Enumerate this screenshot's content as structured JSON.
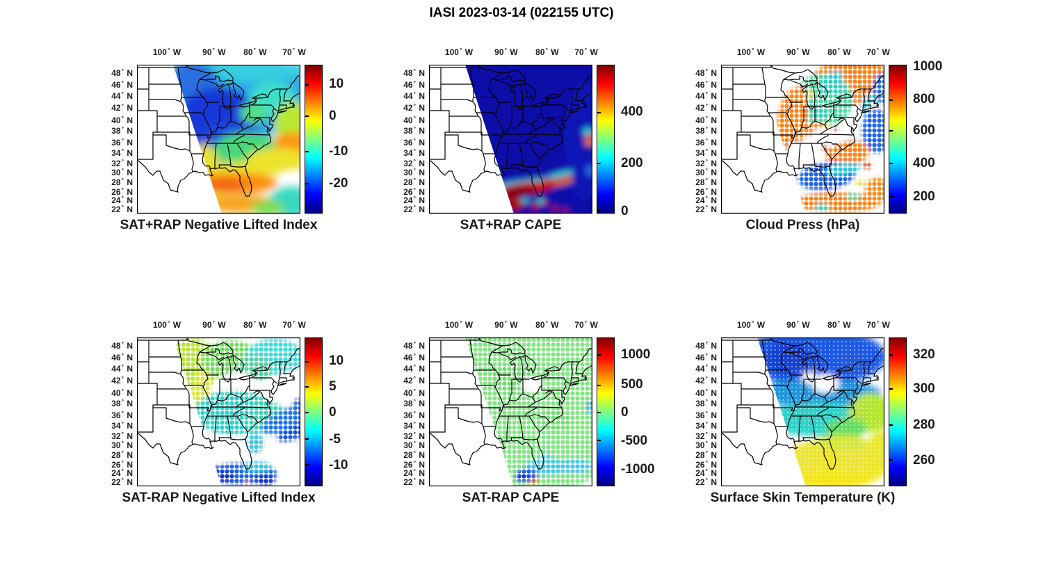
{
  "chart_data": {
    "type": "map-scatter-grid",
    "figure_title": "IASI 2023-03-14 (022155 UTC)",
    "colormap": "jet",
    "jet_stops_top_to_bottom": [
      "#7F0000",
      "#FF0000",
      "#FFFF00",
      "#00FFFF",
      "#0000FF",
      "#00007F"
    ],
    "lon_ticks": {
      "values": [
        "100",
        "90",
        "80",
        "70"
      ],
      "unit": "W"
    },
    "lat_ticks": {
      "values": [
        "48",
        "46",
        "44",
        "42",
        "40",
        "38",
        "36",
        "34",
        "32",
        "30",
        "28",
        "26",
        "24",
        "22"
      ],
      "unit": "N"
    },
    "panels": [
      {
        "id": "sat-plus-rap-negative-lifted-index",
        "title": "SAT+RAP Negative Lifted Index",
        "row": 0,
        "col": 0,
        "style": "smooth",
        "colorbar_ticks": [
          {
            "label": "10",
            "pos": 0.13
          },
          {
            "label": "0",
            "pos": 0.345
          },
          {
            "label": "-10",
            "pos": 0.585
          },
          {
            "label": "-20",
            "pos": 0.8
          }
        ],
        "blobs": [
          [
            140,
            45,
            120,
            62,
            "#2fa8e8"
          ],
          [
            150,
            8,
            105,
            16,
            "#35cfe0"
          ],
          [
            80,
            42,
            42,
            48,
            "#2b6fe0"
          ],
          [
            118,
            80,
            58,
            48,
            "#1537d8"
          ],
          [
            130,
            112,
            42,
            30,
            "#1d47dd"
          ],
          [
            195,
            48,
            34,
            24,
            "#3adfc9"
          ],
          [
            168,
            70,
            20,
            15,
            "#57dd8a"
          ],
          [
            158,
            122,
            48,
            25,
            "#46d77a"
          ],
          [
            225,
            85,
            28,
            32,
            "#b8e832"
          ],
          [
            224,
            113,
            27,
            16,
            "#ff9414"
          ],
          [
            205,
            136,
            48,
            16,
            "#ece32a"
          ],
          [
            145,
            151,
            66,
            11,
            "#ece32a"
          ],
          [
            108,
            152,
            14,
            42,
            "#e8e12a",
            -18
          ],
          [
            140,
            170,
            62,
            15,
            "#ff8c0a"
          ],
          [
            124,
            173,
            30,
            9,
            "#f06414"
          ],
          [
            150,
            200,
            56,
            13,
            "#f5a51e"
          ],
          [
            222,
            197,
            32,
            22,
            "#38d8c0"
          ],
          [
            188,
            206,
            24,
            11,
            "#7fdc50"
          ]
        ]
      },
      {
        "id": "sat-plus-rap-cape",
        "title": "SAT+RAP CAPE",
        "row": 0,
        "col": 1,
        "style": "smooth",
        "colorbar_ticks": [
          {
            "label": "400",
            "pos": 0.32
          },
          {
            "label": "200",
            "pos": 0.665
          },
          {
            "label": "0",
            "pos": 0.985
          }
        ],
        "blobs": [
          [
            145,
            100,
            168,
            155,
            "#0d0da8"
          ],
          [
            222,
            110,
            28,
            85,
            "#1116b4"
          ],
          [
            150,
            169,
            55,
            5,
            "#2cc8dc",
            -6
          ],
          [
            166,
            172,
            42,
            5,
            "#f08214",
            -8
          ],
          [
            140,
            178,
            40,
            9,
            "#c01010",
            -6
          ],
          [
            128,
            182,
            22,
            7,
            "#8c0505",
            -5
          ],
          [
            185,
            164,
            22,
            6,
            "#c41400",
            -14
          ],
          [
            189,
            158,
            20,
            4,
            "#2cc8dc",
            -14
          ],
          [
            231,
            104,
            8,
            8,
            "#d01e00"
          ],
          [
            230,
            112,
            6,
            5,
            "#f08214"
          ],
          [
            228,
            96,
            7,
            6,
            "#2cc8dc"
          ],
          [
            231,
            152,
            6,
            8,
            "#2a6ae6"
          ],
          [
            118,
            200,
            20,
            11,
            "#a00808"
          ],
          [
            152,
            204,
            6,
            4,
            "#c01010"
          ],
          [
            166,
            199,
            5,
            4,
            "#c01010"
          ],
          [
            181,
            207,
            5,
            4,
            "#b00c0c"
          ],
          [
            196,
            210,
            5,
            3,
            "#c01010"
          ],
          [
            138,
            195,
            8,
            3,
            "#2cc8dc"
          ],
          [
            160,
            196,
            6,
            3,
            "#40e0d0"
          ]
        ]
      },
      {
        "id": "cloud-press",
        "title": "Cloud Press (hPa)",
        "row": 0,
        "col": 2,
        "style": "dots",
        "colorbar_ticks": [
          {
            "label": "1000",
            "pos": 0.016
          },
          {
            "label": "800",
            "pos": 0.235
          },
          {
            "label": "600",
            "pos": 0.445
          },
          {
            "label": "400",
            "pos": 0.665
          },
          {
            "label": "200",
            "pos": 0.89
          }
        ],
        "blobs": [
          [
            190,
            25,
            62,
            32,
            "#ff8214"
          ],
          [
            228,
            75,
            18,
            42,
            "#ff8214"
          ],
          [
            148,
            50,
            42,
            38,
            "#46dca0"
          ],
          [
            160,
            30,
            20,
            12,
            "#2cd2c8"
          ],
          [
            135,
            70,
            16,
            12,
            "#35d2b4"
          ],
          [
            103,
            80,
            22,
            48,
            "#ff8214",
            8
          ],
          [
            140,
            95,
            18,
            12,
            "#ff8c1e"
          ],
          [
            231,
            38,
            14,
            26,
            "#2a6ae6"
          ],
          [
            215,
            60,
            14,
            18,
            "#2cc8dc"
          ],
          [
            152,
            103,
            22,
            13,
            "#ffffff"
          ],
          [
            112,
            125,
            18,
            14,
            "#ffffff"
          ],
          [
            225,
            68,
            14,
            12,
            "#ffffff"
          ],
          [
            224,
            95,
            22,
            32,
            "#1e64e6"
          ],
          [
            182,
            128,
            32,
            18,
            "#ff8214",
            -12
          ],
          [
            152,
            160,
            42,
            20,
            "#1e64e6",
            -8
          ],
          [
            176,
            150,
            25,
            9,
            "#2cc8dc",
            -10
          ],
          [
            168,
            198,
            62,
            15,
            "#ff8214"
          ],
          [
            145,
            205,
            12,
            6,
            "#35d2b4"
          ],
          [
            190,
            190,
            10,
            6,
            "#46dca0"
          ],
          [
            225,
            180,
            18,
            18,
            "#ff8c1e"
          ],
          [
            118,
            32,
            5,
            5,
            "#c81e00"
          ],
          [
            150,
            120,
            5,
            4,
            "#c81e00"
          ],
          [
            210,
            145,
            6,
            5,
            "#d02800"
          ],
          [
            165,
            92,
            4,
            4,
            "#c81e00"
          ],
          [
            128,
            42,
            6,
            5,
            "#e6dc28"
          ],
          [
            152,
            88,
            5,
            4,
            "#e6dc28"
          ],
          [
            200,
            170,
            8,
            4,
            "#e6dc28"
          ],
          [
            165,
            15,
            10,
            6,
            "#2cc8dc"
          ]
        ]
      },
      {
        "id": "sat-minus-rap-negative-lifted-index",
        "title": "SAT-RAP Negative Lifted Index",
        "row": 1,
        "col": 0,
        "style": "dots",
        "colorbar_ticks": [
          {
            "label": "10",
            "pos": 0.16
          },
          {
            "label": "5",
            "pos": 0.33
          },
          {
            "label": "0",
            "pos": 0.505
          },
          {
            "label": "-5",
            "pos": 0.685
          },
          {
            "label": "-10",
            "pos": 0.86
          }
        ],
        "blobs": [
          [
            82,
            38,
            40,
            36,
            "#b4e632",
            12
          ],
          [
            92,
            75,
            14,
            28,
            "#d8e632",
            10
          ],
          [
            135,
            32,
            42,
            28,
            "#6edc5a"
          ],
          [
            198,
            28,
            42,
            26,
            "#3cdcdc"
          ],
          [
            170,
            45,
            25,
            18,
            "#50d2a0"
          ],
          [
            145,
            68,
            28,
            18,
            "#ffffff"
          ],
          [
            140,
            108,
            58,
            32,
            "#2ed2c8"
          ],
          [
            185,
            115,
            32,
            22,
            "#3cd2b4"
          ],
          [
            150,
            163,
            60,
            10,
            "#ffffff"
          ],
          [
            225,
            68,
            22,
            20,
            "#ffffff"
          ],
          [
            218,
            118,
            42,
            16,
            "#1e78f0",
            -22
          ],
          [
            228,
            136,
            28,
            10,
            "#1450dc",
            -22
          ],
          [
            170,
            152,
            12,
            16,
            "#30c8e6"
          ],
          [
            150,
            196,
            52,
            16,
            "#1e64e6"
          ],
          [
            122,
            200,
            18,
            9,
            "#1432c8"
          ],
          [
            185,
            205,
            14,
            8,
            "#1432c8"
          ],
          [
            172,
            186,
            22,
            8,
            "#30c8e6"
          ],
          [
            232,
            100,
            8,
            14,
            "#2a6ae6"
          ],
          [
            158,
            208,
            4,
            3,
            "#e68c1e"
          ]
        ]
      },
      {
        "id": "sat-minus-rap-cape",
        "title": "SAT-RAP CAPE",
        "row": 1,
        "col": 1,
        "style": "dots",
        "colorbar_ticks": [
          {
            "label": "1000",
            "pos": 0.115
          },
          {
            "label": "500",
            "pos": 0.32
          },
          {
            "label": "0",
            "pos": 0.505
          },
          {
            "label": "-500",
            "pos": 0.695
          },
          {
            "label": "-1000",
            "pos": 0.89
          }
        ],
        "blobs": [
          [
            143,
            95,
            152,
            135,
            "#82e682"
          ],
          [
            120,
            60,
            30,
            20,
            "#74dc74"
          ],
          [
            180,
            120,
            25,
            15,
            "#74dc74"
          ],
          [
            148,
            68,
            16,
            10,
            "#ffffff"
          ],
          [
            168,
            186,
            30,
            12,
            "#3cc8f0"
          ],
          [
            210,
            185,
            25,
            10,
            "#3cc8f0"
          ],
          [
            140,
            198,
            16,
            10,
            "#1e50e6"
          ],
          [
            132,
            202,
            8,
            6,
            "#1432c8"
          ],
          [
            150,
            208,
            5,
            4,
            "#c81400"
          ],
          [
            155,
            204,
            4,
            3,
            "#e67814"
          ],
          [
            146,
            211,
            4,
            3,
            "#e6c814"
          ],
          [
            231,
            104,
            6,
            6,
            "#3cc8f0"
          ],
          [
            233,
            96,
            5,
            5,
            "#1e64e6"
          ],
          [
            168,
            172,
            8,
            6,
            "#50d2dc"
          ]
        ]
      },
      {
        "id": "surface-skin-temperature",
        "title": "Surface Skin Temperature (K)",
        "row": 1,
        "col": 2,
        "style": "dense",
        "colorbar_ticks": [
          {
            "label": "320",
            "pos": 0.115
          },
          {
            "label": "300",
            "pos": 0.345
          },
          {
            "label": "280",
            "pos": 0.59
          },
          {
            "label": "260",
            "pos": 0.825
          }
        ],
        "blobs": [
          [
            135,
            28,
            102,
            42,
            "#1e5ae6"
          ],
          [
            95,
            30,
            30,
            25,
            "#1443d2"
          ],
          [
            138,
            80,
            92,
            20,
            "#2496dc"
          ],
          [
            145,
            118,
            88,
            24,
            "#2ed2c8"
          ],
          [
            150,
            66,
            20,
            13,
            "#ffffff"
          ],
          [
            126,
            58,
            10,
            8,
            "#ffffff"
          ],
          [
            215,
            108,
            32,
            28,
            "#b4e632"
          ],
          [
            180,
            130,
            30,
            14,
            "#64dc64"
          ],
          [
            162,
            182,
            80,
            36,
            "#f0e62a"
          ],
          [
            172,
            152,
            40,
            12,
            "#d8e63c"
          ],
          [
            230,
            160,
            20,
            25,
            "#e8e632"
          ],
          [
            150,
            205,
            70,
            12,
            "#f5e61e"
          ]
        ]
      }
    ]
  }
}
